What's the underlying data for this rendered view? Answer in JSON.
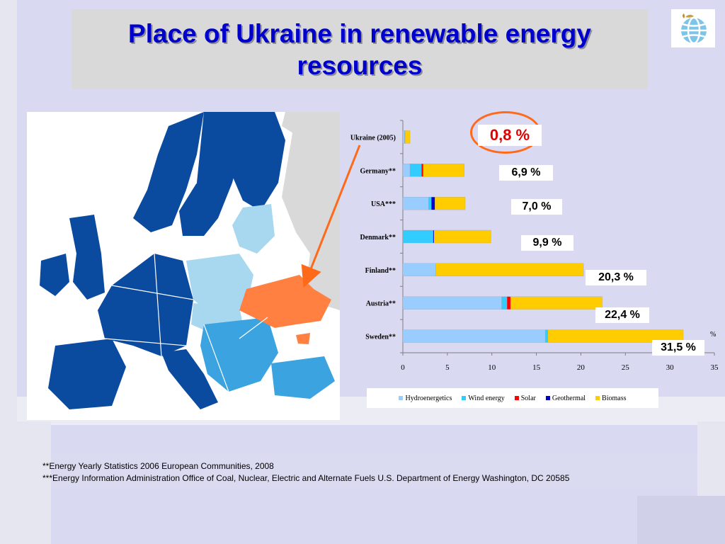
{
  "slide": {
    "title": "Place of Ukraine in renewable energy resources",
    "footnotes": [
      "**Energy Yearly Statistics 2006 European Communities, 2008",
      "***Energy Information Administration Office of Coal, Nuclear, Electric and Alternate Fuels U.S. Department of Energy Washington, DC 20585"
    ]
  },
  "logo": {
    "icon": "globe-icon"
  },
  "map": {
    "highlight_color": "#ff8040",
    "colors": {
      "dark": "#0a4a9f",
      "medium": "#3aa3e0",
      "light": "#a8d8f0",
      "non_eu": "#d9d9d9",
      "sea": "#ffffff"
    }
  },
  "chart_data": {
    "type": "bar",
    "orientation": "horizontal",
    "stacked": true,
    "categories": [
      "Ukraine (2005)",
      "Germany**",
      "USA***",
      "Denmark**",
      "Finland**",
      "Austria**",
      "Sweden**"
    ],
    "series": [
      {
        "name": "Hydroenergetics",
        "color": "#99ccff",
        "values": [
          0.2,
          0.8,
          2.9,
          0.0,
          3.7,
          11.1,
          16.0
        ]
      },
      {
        "name": "Wind energy",
        "color": "#33ccff",
        "values": [
          0.05,
          1.3,
          0.3,
          3.4,
          0.0,
          0.6,
          0.3
        ]
      },
      {
        "name": "Solar",
        "color": "#ff0000",
        "values": [
          0.0,
          0.2,
          0.0,
          0.0,
          0.0,
          0.4,
          0.0
        ]
      },
      {
        "name": "Geothermal",
        "color": "#0000cc",
        "values": [
          0.0,
          0.0,
          0.4,
          0.1,
          0.0,
          0.0,
          0.0
        ]
      },
      {
        "name": "Biomass",
        "color": "#ffcc00",
        "values": [
          0.55,
          4.6,
          3.4,
          6.4,
          16.6,
          10.3,
          15.2
        ]
      }
    ],
    "totals_labels": [
      "0,8 %",
      "6,9 %",
      "7,0 %",
      "9,9 %",
      "20,3 %",
      "22,4 %",
      "31,5 %"
    ],
    "x_ticks": [
      0,
      5,
      10,
      15,
      20,
      25,
      30,
      35
    ],
    "xlim": [
      0,
      35
    ],
    "unit": "%",
    "legend_position": "bottom",
    "grid": false
  }
}
